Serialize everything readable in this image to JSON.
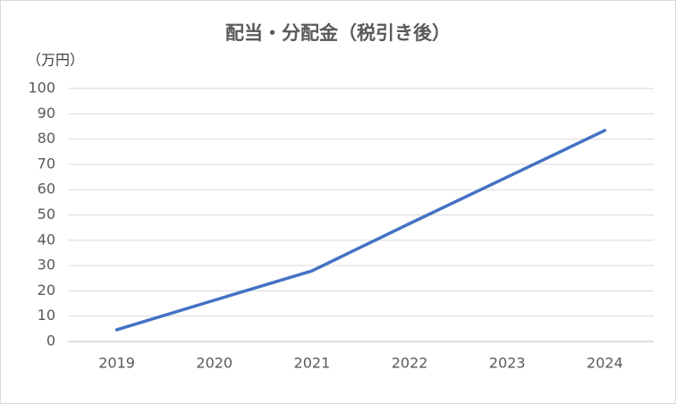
{
  "chart_data": {
    "type": "line",
    "title": "配当・分配金（税引き後）",
    "y_label": "（万円）",
    "categories": [
      "2019",
      "2020",
      "2021",
      "2022",
      "2023",
      "2024"
    ],
    "series": [
      {
        "name": "配当・分配金",
        "color": "#4472c4",
        "values": [
          4.6,
          16.3,
          27.9,
          46.6,
          65,
          83.4
        ]
      }
    ],
    "ylim": [
      0,
      100
    ],
    "yticks": [
      0,
      10,
      20,
      30,
      40,
      50,
      60,
      70,
      80,
      90,
      100
    ],
    "grid": true
  }
}
